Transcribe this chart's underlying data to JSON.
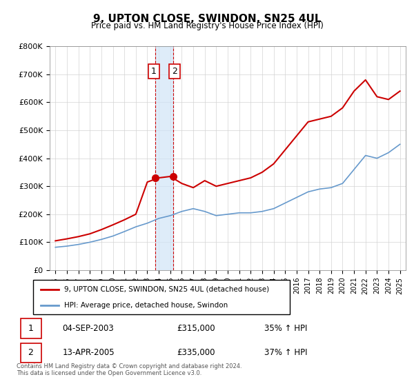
{
  "title": "9, UPTON CLOSE, SWINDON, SN25 4UL",
  "subtitle": "Price paid vs. HM Land Registry's House Price Index (HPI)",
  "legend_line1": "9, UPTON CLOSE, SWINDON, SN25 4UL (detached house)",
  "legend_line2": "HPI: Average price, detached house, Swindon",
  "footer": "Contains HM Land Registry data © Crown copyright and database right 2024.\nThis data is licensed under the Open Government Licence v3.0.",
  "transactions": [
    {
      "num": 1,
      "date": "04-SEP-2003",
      "price": "£315,000",
      "hpi": "35% ↑ HPI",
      "year": 2003.67
    },
    {
      "num": 2,
      "date": "13-APR-2005",
      "price": "£335,000",
      "hpi": "37% ↑ HPI",
      "year": 2005.28
    }
  ],
  "red_line_color": "#cc0000",
  "blue_line_color": "#6699cc",
  "vline_color_dashed": "#cc0000",
  "shade_color": "#d0e4f7",
  "ylim": [
    0,
    800000
  ],
  "yticks": [
    0,
    100000,
    200000,
    300000,
    400000,
    500000,
    600000,
    700000,
    800000
  ],
  "ytick_labels": [
    "£0",
    "£100K",
    "£200K",
    "£300K",
    "£400K",
    "£500K",
    "£600K",
    "£700K",
    "£800K"
  ],
  "hpi_x": [
    1995,
    1996,
    1997,
    1998,
    1999,
    2000,
    2001,
    2002,
    2003,
    2004,
    2005,
    2006,
    2007,
    2008,
    2009,
    2010,
    2011,
    2012,
    2013,
    2014,
    2015,
    2016,
    2017,
    2018,
    2019,
    2020,
    2021,
    2022,
    2023,
    2024,
    2025
  ],
  "hpi_y": [
    82000,
    86000,
    92000,
    100000,
    110000,
    122000,
    138000,
    155000,
    168000,
    185000,
    195000,
    210000,
    220000,
    210000,
    195000,
    200000,
    205000,
    205000,
    210000,
    220000,
    240000,
    260000,
    280000,
    290000,
    295000,
    310000,
    360000,
    410000,
    400000,
    420000,
    450000
  ],
  "red_x": [
    1995,
    1996,
    1997,
    1998,
    1999,
    2000,
    2001,
    2002,
    2003,
    2004,
    2005,
    2006,
    2007,
    2008,
    2009,
    2010,
    2011,
    2012,
    2013,
    2014,
    2015,
    2016,
    2017,
    2018,
    2019,
    2020,
    2021,
    2022,
    2023,
    2024,
    2025
  ],
  "red_y": [
    105000,
    112000,
    120000,
    130000,
    145000,
    162000,
    180000,
    200000,
    315000,
    330000,
    335000,
    310000,
    295000,
    320000,
    300000,
    310000,
    320000,
    330000,
    350000,
    380000,
    430000,
    480000,
    530000,
    540000,
    550000,
    580000,
    640000,
    680000,
    620000,
    610000,
    640000
  ]
}
